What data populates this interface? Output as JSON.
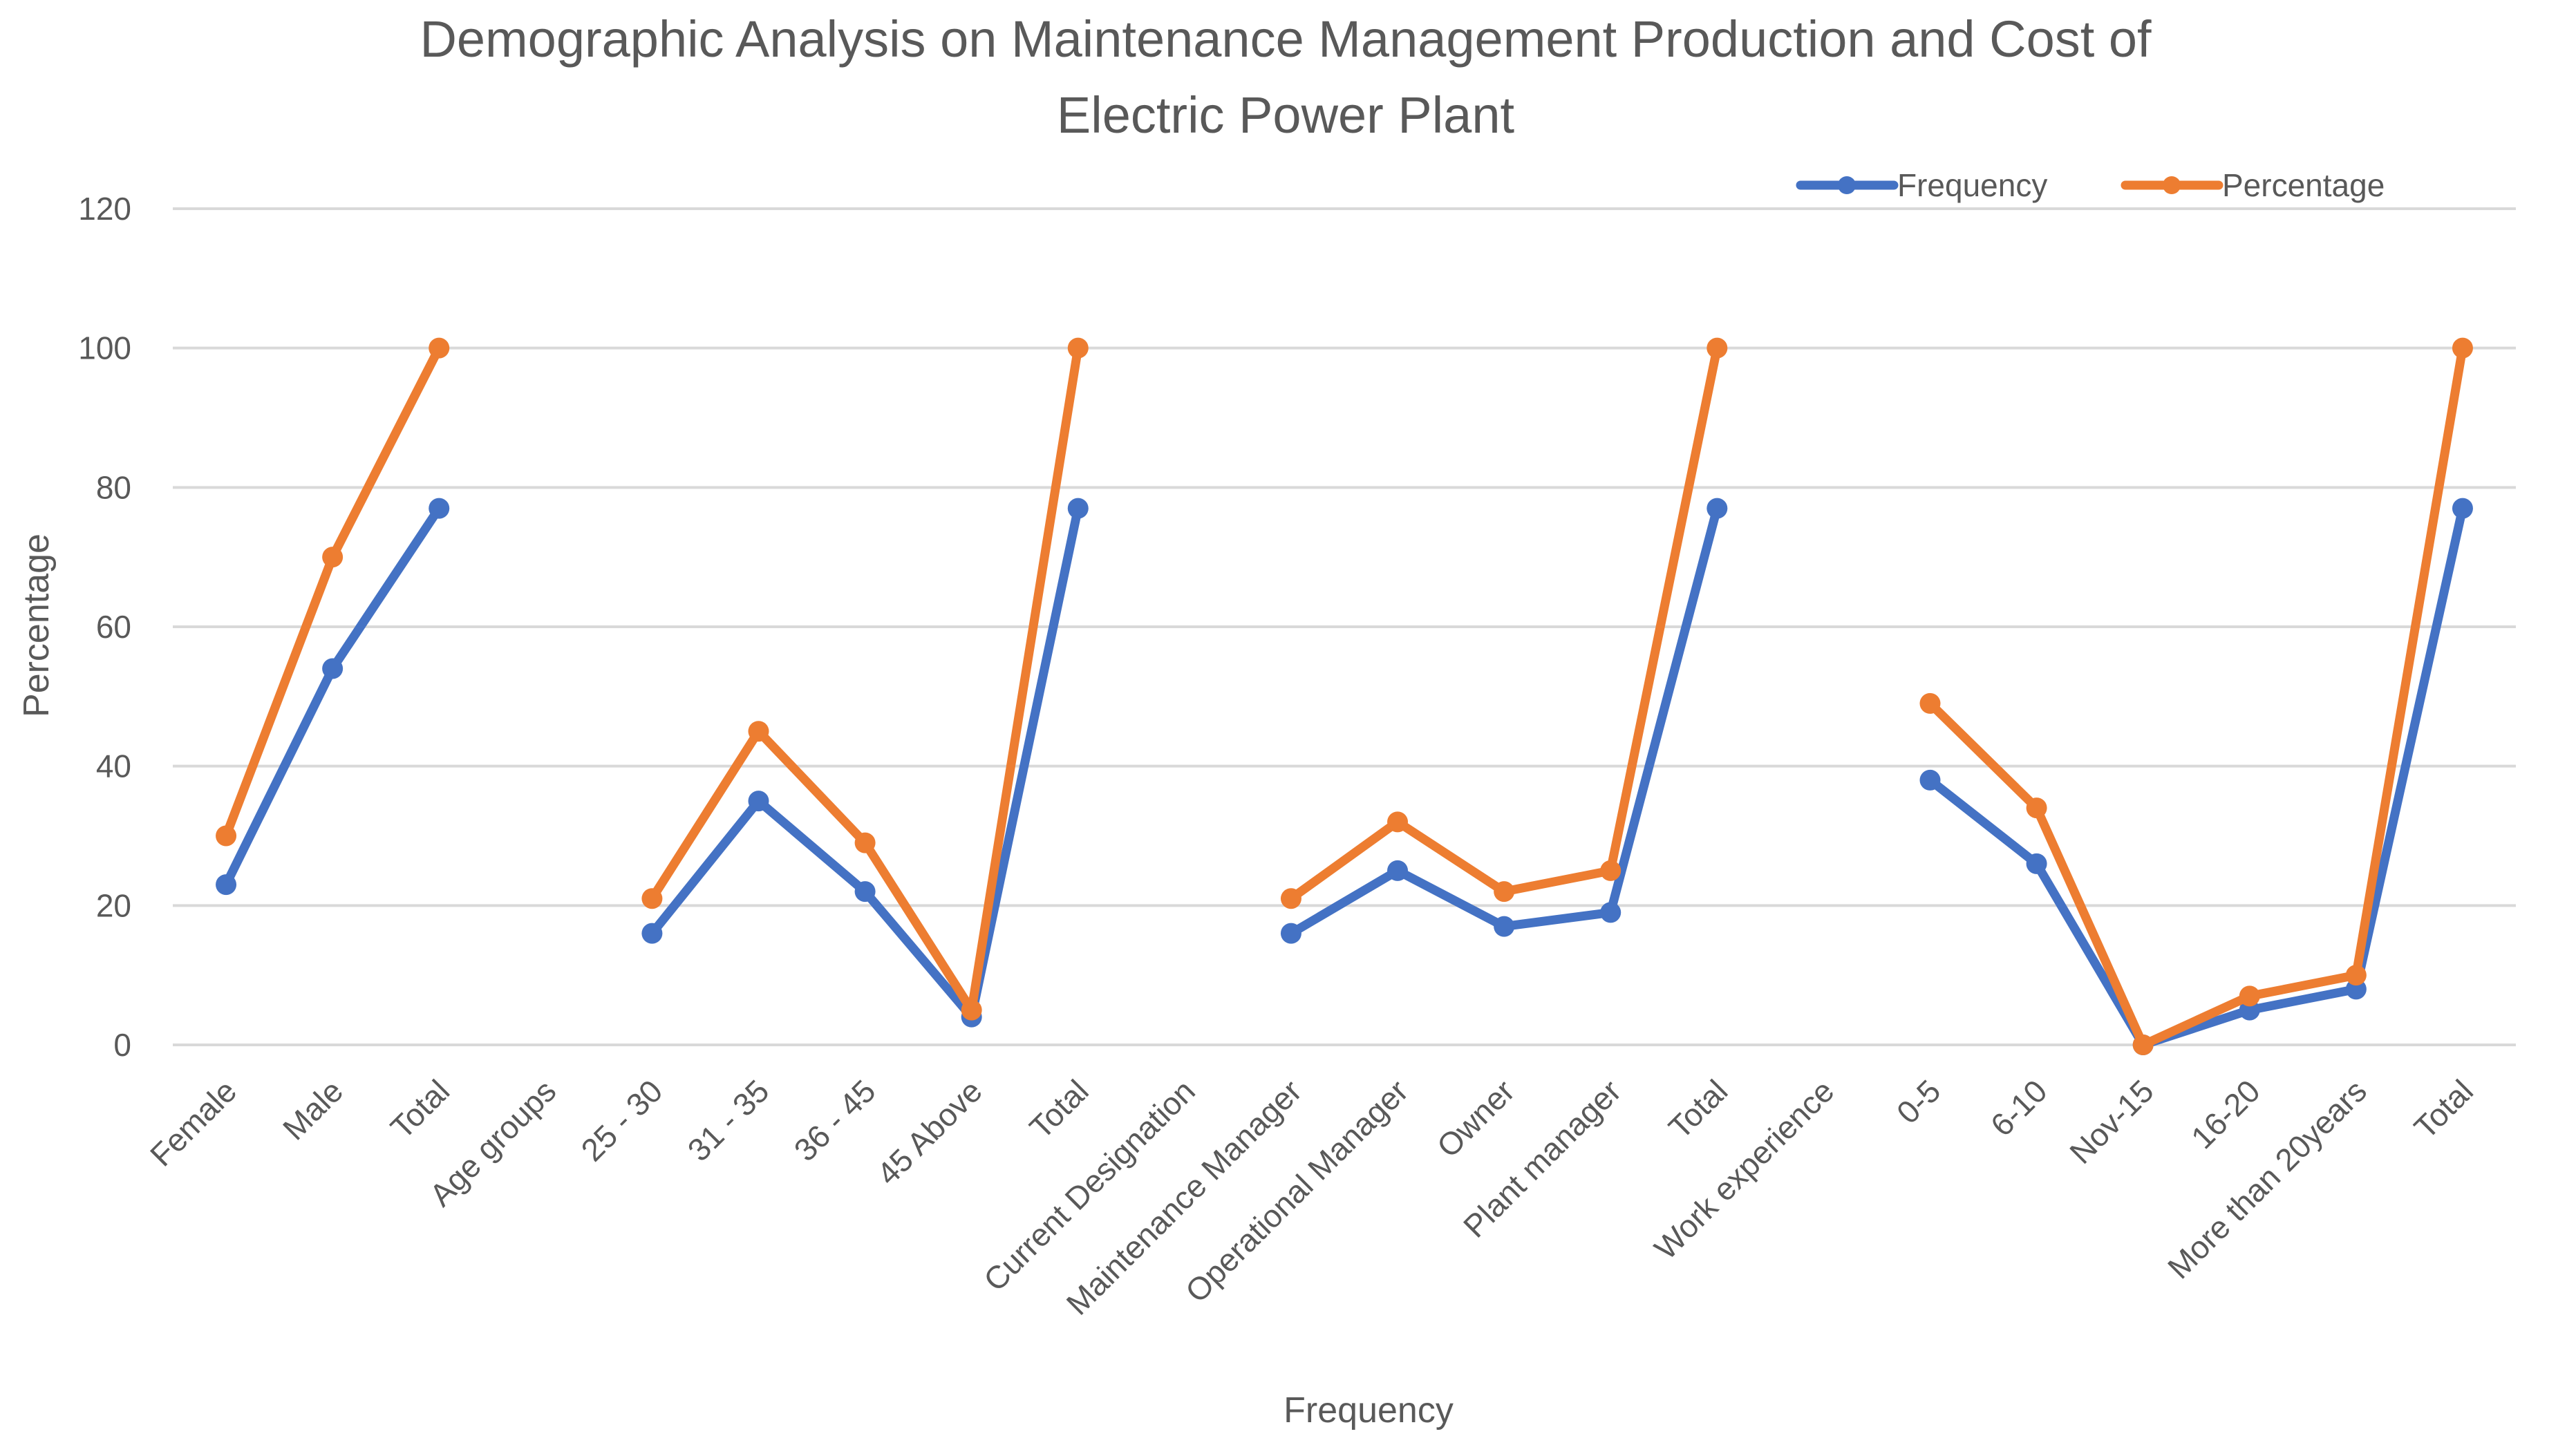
{
  "chart_data": {
    "type": "line",
    "title": "Demographic Analysis on Maintenance Management Production and Cost of Electric Power Plant",
    "title_lines": [
      "Demographic Analysis on Maintenance Management Production and Cost of",
      "Electric Power Plant"
    ],
    "xlabel": "Frequency",
    "ylabel": "Percentage",
    "ylim": [
      0,
      120
    ],
    "yticks": [
      0,
      20,
      40,
      60,
      80,
      100,
      120
    ],
    "grid": true,
    "legend_position": "top-right",
    "categories": [
      "Female",
      "Male",
      "Total",
      "Age groups",
      "25 - 30",
      "31 - 35",
      "36 - 45",
      "45 Above",
      "Total",
      "Current Designation",
      "Maintenance Manager",
      "Operational Manager",
      "Owner",
      "Plant manager",
      "Total",
      "Work experience",
      "0-5",
      "6-10",
      "Nov-15",
      "16-20",
      "More than 20years",
      "Total"
    ],
    "series": [
      {
        "name": "Frequency",
        "color": "#4472C4",
        "values": [
          23,
          54,
          77,
          null,
          16,
          35,
          22,
          4,
          77,
          null,
          16,
          25,
          17,
          19,
          77,
          null,
          38,
          26,
          0,
          5,
          8,
          77
        ]
      },
      {
        "name": "Percentage",
        "color": "#ED7D31",
        "values": [
          30,
          70,
          100,
          null,
          21,
          45,
          29,
          5,
          100,
          null,
          21,
          32,
          22,
          25,
          100,
          null,
          49,
          34,
          0,
          7,
          10,
          100
        ]
      }
    ]
  }
}
